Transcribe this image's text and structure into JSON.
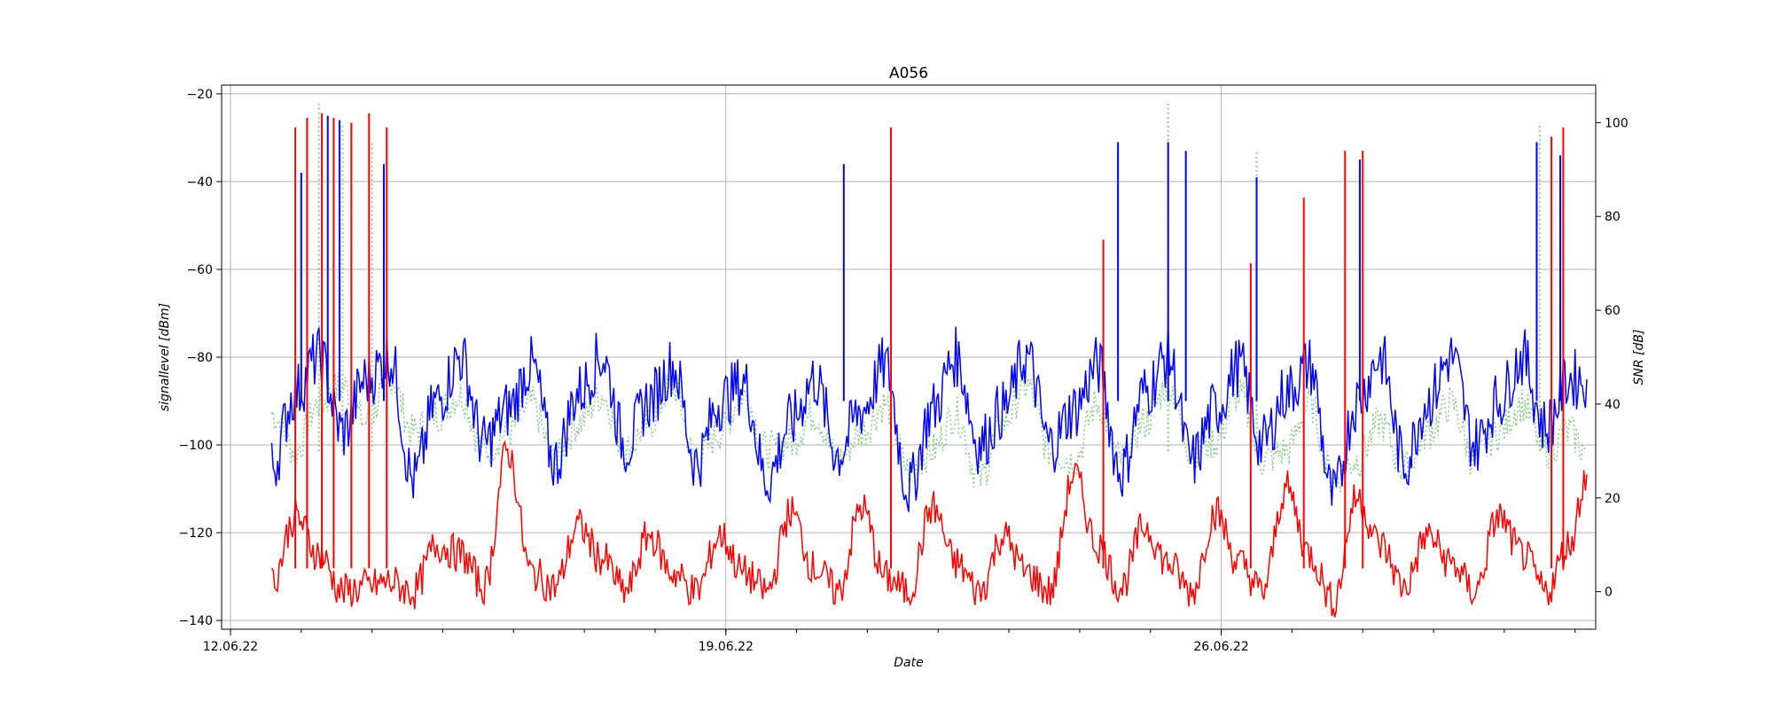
{
  "chart_data": {
    "type": "line",
    "title": "A056",
    "xlabel": "Date",
    "ylabel": "signallevel [dBm]",
    "y2label": "SNR [dB]",
    "x_range": [
      "2022-06-11T21:00",
      "2022-07-01T07:00"
    ],
    "x_ticks": [
      {
        "date": "2022-06-12",
        "label": "12.06.22"
      },
      {
        "date": "2022-06-19",
        "label": "19.06.22"
      },
      {
        "date": "2022-06-26",
        "label": "26.06.22"
      }
    ],
    "ylim": [
      -142,
      -18
    ],
    "y_ticks": [
      -140,
      -120,
      -100,
      -80,
      -60,
      -40,
      -20
    ],
    "y2lim": [
      -8,
      108
    ],
    "y2_ticks": [
      0,
      20,
      40,
      60,
      80,
      100
    ],
    "grid": true,
    "series": [
      {
        "color": "#0000ff",
        "axis": "left",
        "style": "solid",
        "points": [
          [
            "2022-06-12T14:00",
            -105
          ],
          [
            "2022-06-12T22:00",
            -88
          ],
          [
            "2022-06-13T06:00",
            -80
          ],
          [
            "2022-06-13T14:00",
            -97
          ],
          [
            "2022-06-13T22:00",
            -85
          ],
          [
            "2022-06-14T06:00",
            -80
          ],
          [
            "2022-06-14T14:00",
            -108
          ],
          [
            "2022-06-14T22:00",
            -90
          ],
          [
            "2022-06-15T06:00",
            -80
          ],
          [
            "2022-06-15T14:00",
            -100
          ],
          [
            "2022-06-15T22:00",
            -92
          ],
          [
            "2022-06-16T06:00",
            -82
          ],
          [
            "2022-06-16T14:00",
            -104
          ],
          [
            "2022-06-16T22:00",
            -88
          ],
          [
            "2022-06-17T06:00",
            -80
          ],
          [
            "2022-06-17T14:00",
            -100
          ],
          [
            "2022-06-17T22:00",
            -90
          ],
          [
            "2022-06-18T06:00",
            -82
          ],
          [
            "2022-06-18T14:00",
            -104
          ],
          [
            "2022-06-18T22:00",
            -90
          ],
          [
            "2022-06-19T06:00",
            -86
          ],
          [
            "2022-06-19T14:00",
            -108
          ],
          [
            "2022-06-19T22:00",
            -95
          ],
          [
            "2022-06-20T06:00",
            -85
          ],
          [
            "2022-06-20T14:00",
            -102
          ],
          [
            "2022-06-20T22:00",
            -92
          ],
          [
            "2022-06-21T06:00",
            -82
          ],
          [
            "2022-06-21T14:00",
            -110
          ],
          [
            "2022-06-21T22:00",
            -92
          ],
          [
            "2022-06-22T06:00",
            -80
          ],
          [
            "2022-06-22T14:00",
            -100
          ],
          [
            "2022-06-22T22:00",
            -92
          ],
          [
            "2022-06-23T06:00",
            -80
          ],
          [
            "2022-06-23T14:00",
            -100
          ],
          [
            "2022-06-23T22:00",
            -92
          ],
          [
            "2022-06-24T06:00",
            -82
          ],
          [
            "2022-06-24T14:00",
            -106
          ],
          [
            "2022-06-24T22:00",
            -88
          ],
          [
            "2022-06-25T06:00",
            -80
          ],
          [
            "2022-06-25T14:00",
            -104
          ],
          [
            "2022-06-25T22:00",
            -92
          ],
          [
            "2022-06-26T06:00",
            -82
          ],
          [
            "2022-06-26T14:00",
            -100
          ],
          [
            "2022-06-26T22:00",
            -88
          ],
          [
            "2022-06-27T06:00",
            -82
          ],
          [
            "2022-06-27T14:00",
            -112
          ],
          [
            "2022-06-27T22:00",
            -90
          ],
          [
            "2022-06-28T06:00",
            -80
          ],
          [
            "2022-06-28T14:00",
            -104
          ],
          [
            "2022-06-28T22:00",
            -90
          ],
          [
            "2022-06-29T06:00",
            -80
          ],
          [
            "2022-06-29T14:00",
            -100
          ],
          [
            "2022-06-29T22:00",
            -90
          ],
          [
            "2022-06-30T06:00",
            -80
          ],
          [
            "2022-06-30T14:00",
            -96
          ],
          [
            "2022-06-30T22:00",
            -85
          ],
          [
            "2022-07-01T04:00",
            -85
          ]
        ],
        "spikes": [
          [
            "2022-06-13T00:00",
            -38
          ],
          [
            "2022-06-13T09:00",
            -25
          ],
          [
            "2022-06-13T13:00",
            -26
          ],
          [
            "2022-06-14T04:00",
            -36
          ],
          [
            "2022-06-20T16:00",
            -36
          ],
          [
            "2022-06-24T13:00",
            -31
          ],
          [
            "2022-06-25T06:00",
            -31
          ],
          [
            "2022-06-25T12:00",
            -33
          ],
          [
            "2022-06-26T12:00",
            -39
          ],
          [
            "2022-06-27T23:00",
            -35
          ],
          [
            "2022-06-30T11:00",
            -31
          ],
          [
            "2022-06-30T19:00",
            -34
          ]
        ]
      },
      {
        "color": "#ff0000",
        "axis": "right",
        "style": "solid",
        "points": [
          [
            "2022-06-12T14:00",
            2
          ],
          [
            "2022-06-12T22:00",
            16
          ],
          [
            "2022-06-13T06:00",
            8
          ],
          [
            "2022-06-13T14:00",
            0
          ],
          [
            "2022-06-13T22:00",
            1
          ],
          [
            "2022-06-14T06:00",
            2
          ],
          [
            "2022-06-14T14:00",
            0
          ],
          [
            "2022-06-14T22:00",
            10
          ],
          [
            "2022-06-15T06:00",
            8
          ],
          [
            "2022-06-15T14:00",
            1
          ],
          [
            "2022-06-15T22:00",
            30
          ],
          [
            "2022-06-16T06:00",
            4
          ],
          [
            "2022-06-16T14:00",
            1
          ],
          [
            "2022-06-16T22:00",
            14
          ],
          [
            "2022-06-17T06:00",
            7
          ],
          [
            "2022-06-17T14:00",
            0
          ],
          [
            "2022-06-17T22:00",
            12
          ],
          [
            "2022-06-18T06:00",
            4
          ],
          [
            "2022-06-18T14:00",
            0
          ],
          [
            "2022-06-18T22:00",
            12
          ],
          [
            "2022-06-19T06:00",
            4
          ],
          [
            "2022-06-19T14:00",
            0
          ],
          [
            "2022-06-19T22:00",
            17
          ],
          [
            "2022-06-20T06:00",
            5
          ],
          [
            "2022-06-20T14:00",
            0
          ],
          [
            "2022-06-20T22:00",
            18
          ],
          [
            "2022-06-21T06:00",
            3
          ],
          [
            "2022-06-21T14:00",
            0
          ],
          [
            "2022-06-21T22:00",
            18
          ],
          [
            "2022-06-22T06:00",
            6
          ],
          [
            "2022-06-22T14:00",
            0
          ],
          [
            "2022-06-22T22:00",
            12
          ],
          [
            "2022-06-23T06:00",
            4
          ],
          [
            "2022-06-23T14:00",
            0
          ],
          [
            "2022-06-23T22:00",
            25
          ],
          [
            "2022-06-24T06:00",
            10
          ],
          [
            "2022-06-24T14:00",
            1
          ],
          [
            "2022-06-24T22:00",
            14
          ],
          [
            "2022-06-25T06:00",
            6
          ],
          [
            "2022-06-25T14:00",
            0
          ],
          [
            "2022-06-25T22:00",
            17
          ],
          [
            "2022-06-26T06:00",
            6
          ],
          [
            "2022-06-26T14:00",
            0
          ],
          [
            "2022-06-26T22:00",
            22
          ],
          [
            "2022-06-27T06:00",
            8
          ],
          [
            "2022-06-27T14:00",
            -2
          ],
          [
            "2022-06-27T22:00",
            20
          ],
          [
            "2022-06-28T06:00",
            10
          ],
          [
            "2022-06-28T14:00",
            1
          ],
          [
            "2022-06-28T22:00",
            12
          ],
          [
            "2022-06-29T06:00",
            6
          ],
          [
            "2022-06-29T14:00",
            0
          ],
          [
            "2022-06-29T22:00",
            16
          ],
          [
            "2022-06-30T06:00",
            8
          ],
          [
            "2022-06-30T14:00",
            0
          ],
          [
            "2022-06-30T22:00",
            10
          ],
          [
            "2022-07-01T04:00",
            25
          ]
        ],
        "spikes": [
          [
            "2022-06-12T22:00",
            99
          ],
          [
            "2022-06-13T02:00",
            101
          ],
          [
            "2022-06-13T07:00",
            102
          ],
          [
            "2022-06-13T11:00",
            101
          ],
          [
            "2022-06-13T17:00",
            100
          ],
          [
            "2022-06-13T23:00",
            102
          ],
          [
            "2022-06-14T05:00",
            99
          ],
          [
            "2022-06-21T08:00",
            99
          ],
          [
            "2022-06-24T08:00",
            75
          ],
          [
            "2022-06-26T10:00",
            70
          ],
          [
            "2022-06-27T04:00",
            84
          ],
          [
            "2022-06-27T18:00",
            94
          ],
          [
            "2022-06-28T00:00",
            94
          ],
          [
            "2022-06-30T16:00",
            97
          ],
          [
            "2022-06-30T20:00",
            99
          ]
        ]
      },
      {
        "color": "#8fca8f",
        "axis": "right",
        "style": "dotted",
        "points": [
          [
            "2022-06-12T14:00",
            38
          ],
          [
            "2022-06-12T22:00",
            30
          ],
          [
            "2022-06-13T06:00",
            40
          ],
          [
            "2022-06-13T14:00",
            44
          ],
          [
            "2022-06-13T22:00",
            36
          ],
          [
            "2022-06-14T06:00",
            46
          ],
          [
            "2022-06-14T14:00",
            34
          ],
          [
            "2022-06-14T22:00",
            38
          ],
          [
            "2022-06-15T06:00",
            42
          ],
          [
            "2022-06-15T14:00",
            30
          ],
          [
            "2022-06-15T22:00",
            34
          ],
          [
            "2022-06-16T06:00",
            40
          ],
          [
            "2022-06-16T14:00",
            28
          ],
          [
            "2022-06-16T22:00",
            36
          ],
          [
            "2022-06-17T06:00",
            42
          ],
          [
            "2022-06-17T14:00",
            30
          ],
          [
            "2022-06-17T22:00",
            36
          ],
          [
            "2022-06-18T06:00",
            44
          ],
          [
            "2022-06-18T14:00",
            28
          ],
          [
            "2022-06-18T22:00",
            34
          ],
          [
            "2022-06-19T06:00",
            42
          ],
          [
            "2022-06-19T14:00",
            30
          ],
          [
            "2022-06-19T22:00",
            32
          ],
          [
            "2022-06-20T06:00",
            38
          ],
          [
            "2022-06-20T14:00",
            28
          ],
          [
            "2022-06-20T22:00",
            34
          ],
          [
            "2022-06-21T06:00",
            40
          ],
          [
            "2022-06-21T14:00",
            26
          ],
          [
            "2022-06-21T22:00",
            30
          ],
          [
            "2022-06-22T06:00",
            38
          ],
          [
            "2022-06-22T14:00",
            24
          ],
          [
            "2022-06-22T22:00",
            36
          ],
          [
            "2022-06-23T06:00",
            44
          ],
          [
            "2022-06-23T14:00",
            30
          ],
          [
            "2022-06-23T22:00",
            28
          ],
          [
            "2022-06-24T06:00",
            40
          ],
          [
            "2022-06-24T14:00",
            28
          ],
          [
            "2022-06-24T22:00",
            36
          ],
          [
            "2022-06-25T06:00",
            44
          ],
          [
            "2022-06-25T14:00",
            30
          ],
          [
            "2022-06-25T22:00",
            32
          ],
          [
            "2022-06-26T06:00",
            42
          ],
          [
            "2022-06-26T14:00",
            28
          ],
          [
            "2022-06-26T22:00",
            30
          ],
          [
            "2022-06-27T06:00",
            40
          ],
          [
            "2022-06-27T14:00",
            24
          ],
          [
            "2022-06-27T22:00",
            28
          ],
          [
            "2022-06-28T06:00",
            36
          ],
          [
            "2022-06-28T14:00",
            26
          ],
          [
            "2022-06-28T22:00",
            34
          ],
          [
            "2022-06-29T06:00",
            40
          ],
          [
            "2022-06-29T14:00",
            28
          ],
          [
            "2022-06-29T22:00",
            34
          ],
          [
            "2022-06-30T06:00",
            40
          ],
          [
            "2022-06-30T14:00",
            30
          ],
          [
            "2022-06-30T22:00",
            34
          ],
          [
            "2022-07-01T04:00",
            30
          ]
        ],
        "spikes": [
          [
            "2022-06-13T06:00",
            104
          ],
          [
            "2022-06-13T14:00",
            100
          ],
          [
            "2022-06-14T00:00",
            96
          ],
          [
            "2022-06-25T06:00",
            104
          ],
          [
            "2022-06-26T12:00",
            94
          ],
          [
            "2022-06-30T12:00",
            100
          ]
        ]
      }
    ]
  }
}
